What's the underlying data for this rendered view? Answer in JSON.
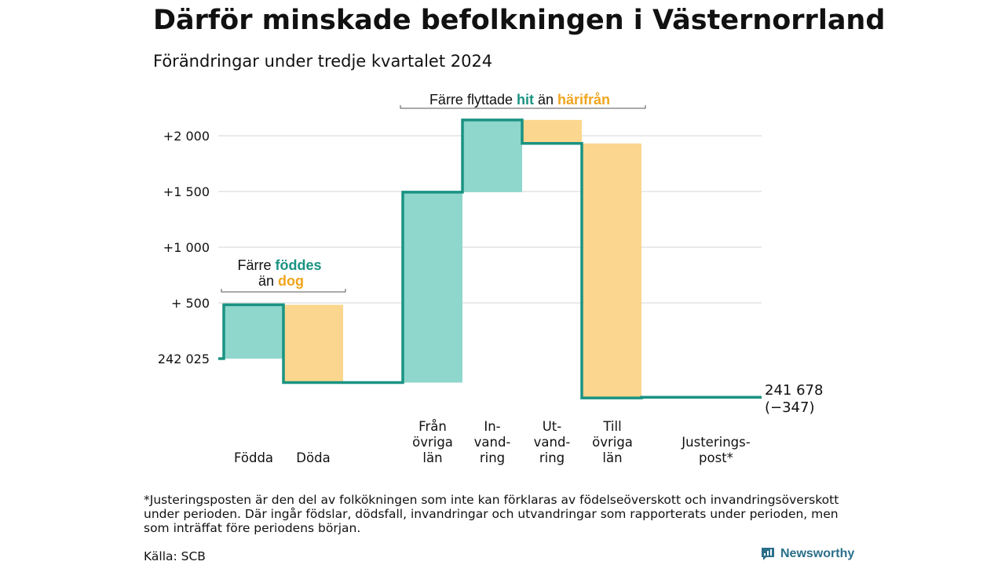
{
  "title": "Därför minskade befolkningen i Västernorrland",
  "subtitle": "Förändringar under tredje kvartalet 2024",
  "footnote": "*Justeringsposten är den del av folkökningen som inte kan förklaras av födelseöverskott och invandringsöverskott under perioden. Där ingår födslar, dödsfall, invandringar och utvandringar som rapporterats under perioden, men som inträffat före periodens början.",
  "source": "Källa: SCB",
  "brand": "Newsworthy",
  "colors": {
    "inflow": "#8fd6cd",
    "outflow": "#fbd68e",
    "line": "#1a9382",
    "green_text": "#1a9382",
    "orange_text": "#f0a51e",
    "grid": "#dddddd"
  },
  "annotations": {
    "births_deaths": {
      "line1_prefix": "Färre ",
      "line1_highlight": "föddes",
      "line2_prefix": "än ",
      "line2_highlight": "dog"
    },
    "migration": {
      "prefix": "Färre flyttade ",
      "highlight1": "hit",
      "middle": " än ",
      "highlight2": "härifrån"
    }
  },
  "chart_data": {
    "type": "waterfall",
    "baseline": 242025,
    "baseline_label": "242 025",
    "end_label_line1": "241 678",
    "end_label_line2": "(−347)",
    "yticks": [
      {
        "value": 0,
        "label": "242 025"
      },
      {
        "value": 500,
        "label": "+  500"
      },
      {
        "value": 1000,
        "label": "+1 000"
      },
      {
        "value": 1500,
        "label": "+1 500"
      },
      {
        "value": 2000,
        "label": "+2 000"
      }
    ],
    "steps": [
      {
        "category": [
          "Födda"
        ],
        "change": 483,
        "kind": "inflow"
      },
      {
        "category": [
          "Döda"
        ],
        "change": -698,
        "kind": "outflow"
      },
      {
        "category": [
          "Från",
          "övriga",
          "län"
        ],
        "change": 1709,
        "kind": "inflow"
      },
      {
        "category": [
          "In-",
          "vand-",
          "ring"
        ],
        "change": 648,
        "kind": "inflow"
      },
      {
        "category": [
          "Ut-",
          "vand-",
          "ring"
        ],
        "change": -211,
        "kind": "outflow"
      },
      {
        "category": [
          "Till",
          "övriga",
          "län"
        ],
        "change": -2284,
        "kind": "outflow"
      },
      {
        "category": [
          "Justerings-",
          "post*"
        ],
        "change": 6,
        "kind": "adjustment"
      }
    ],
    "net_change": -347,
    "ylim": [
      -400,
      2300
    ],
    "grid": true
  }
}
